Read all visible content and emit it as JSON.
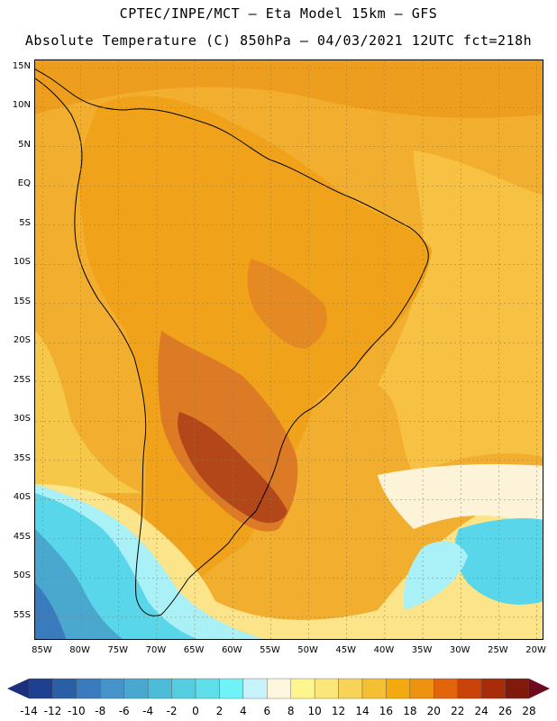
{
  "header": {
    "line1": "CPTEC/INPE/MCT –  Eta Model 15km – GFS",
    "line2": "Absolute Temperature (C) 850hPa – 04/03/2021 12UTC fct=218h"
  },
  "map": {
    "lon_range": [
      -86,
      -19
    ],
    "lat_range": [
      -58,
      16
    ],
    "lat_labels": [
      "15N",
      "10N",
      "5N",
      "EQ",
      "5S",
      "10S",
      "15S",
      "20S",
      "25S",
      "30S",
      "35S",
      "40S",
      "45S",
      "50S",
      "55S"
    ],
    "lat_values": [
      15,
      10,
      5,
      0,
      -5,
      -10,
      -15,
      -20,
      -25,
      -30,
      -35,
      -40,
      -45,
      -50,
      -55
    ],
    "lon_labels": [
      "85W",
      "80W",
      "75W",
      "70W",
      "65W",
      "60W",
      "55W",
      "50W",
      "45W",
      "40W",
      "35W",
      "30W",
      "25W",
      "20W"
    ],
    "lon_values": [
      -85,
      -80,
      -75,
      -70,
      -65,
      -60,
      -55,
      -50,
      -45,
      -40,
      -35,
      -30,
      -25,
      -20
    ]
  },
  "colorbar": {
    "labels": [
      "-14",
      "-12",
      "-10",
      "-8",
      "-6",
      "-4",
      "-2",
      "0",
      "2",
      "4",
      "6",
      "8",
      "10",
      "12",
      "14",
      "16",
      "18",
      "20",
      "22",
      "24",
      "26",
      "28"
    ],
    "colors": [
      "#1f3f8f",
      "#2a5fa5",
      "#3a7bbd",
      "#4593c8",
      "#4aa8cf",
      "#4cbcd8",
      "#55cde0",
      "#5fdeea",
      "#6ff3f6",
      "#c6f4fa",
      "#fdf6dc",
      "#fdf58e",
      "#fbe67a",
      "#f8d35a",
      "#f4c031",
      "#f2aa10",
      "#ee9212",
      "#e2640b",
      "#c9420a",
      "#a82c0a",
      "#801b0c"
    ],
    "left_arrow_color": "#1c2f7a",
    "right_arrow_color": "#6e0a1e"
  },
  "palette": {
    "ocean_warm": "#f2ae2e",
    "land_warm": "#f0a21a",
    "hot": "#dd7a25",
    "hottest": "#b4471a",
    "cool_yellow": "#f7cf58",
    "pale_yellow": "#fbe48a",
    "cream": "#fdf3d8",
    "cyan_light": "#aaf0f7",
    "cyan": "#5ad6ea",
    "blue_mid": "#4aa8cf",
    "blue_dark": "#3a7bbd"
  }
}
